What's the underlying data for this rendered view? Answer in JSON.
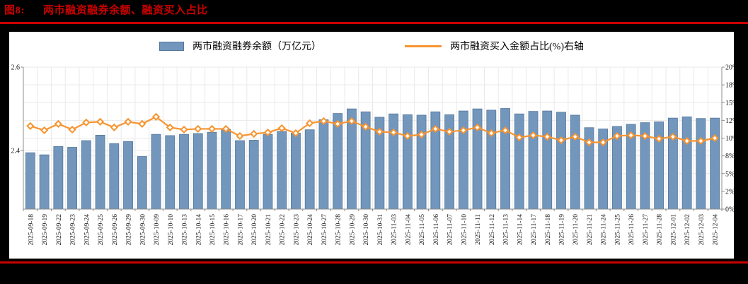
{
  "title": {
    "prefix": "图8:",
    "text": "两市融资融券余额、融资买入占比"
  },
  "legend": [
    {
      "label": "两市融资融券余额（万亿元）",
      "color": "#7396bc"
    },
    {
      "label": "两市融资买入金额占比(%)右轴",
      "color": "#f79430"
    }
  ],
  "colors": {
    "title_red": "#cc0000",
    "rule_red": "#cc0000",
    "bar_fill": "#7396bc",
    "bar_stroke": "#54779b",
    "line_orange": "#f79430",
    "grid": "#e9e9e9",
    "axis": "#8c8c8c",
    "text": "#1a1a1a",
    "panel_bg": "#ffffff",
    "page_bg": "#000000"
  },
  "chart_data": {
    "type": "bar",
    "title": "两市融资融券余额、融资买入占比",
    "categories": [
      "2025-09-18",
      "2025-09-19",
      "2025-09-22",
      "2025-09-23",
      "2025-09-24",
      "2025-09-25",
      "2025-09-26",
      "2025-09-29",
      "2025-09-30",
      "2025-10-09",
      "2025-10-10",
      "2025-10-13",
      "2025-10-14",
      "2025-10-15",
      "2025-10-16",
      "2025-10-17",
      "2025-10-20",
      "2025-10-21",
      "2025-10-22",
      "2025-10-23",
      "2025-10-24",
      "2025-10-27",
      "2025-10-28",
      "2025-10-29",
      "2025-10-30",
      "2025-10-31",
      "2025-11-03",
      "2025-11-04",
      "2025-11-05",
      "2025-11-06",
      "2025-11-07",
      "2025-11-10",
      "2025-11-11",
      "2025-11-12",
      "2025-11-13",
      "2025-11-14",
      "2025-11-17",
      "2025-11-18",
      "2025-11-19",
      "2025-11-20",
      "2025-11-21",
      "2025-11-24",
      "2025-11-25",
      "2025-11-26",
      "2025-11-27",
      "2025-11-28",
      "2025-12-01",
      "2025-12-02",
      "2025-12-03",
      "2025-12-04"
    ],
    "series": [
      {
        "name": "两市融资融券余额（万亿元）",
        "type": "bar",
        "axis": "left",
        "values": [
          2.395,
          2.39,
          2.41,
          2.408,
          2.424,
          2.437,
          2.417,
          2.422,
          2.386,
          2.439,
          2.436,
          2.439,
          2.441,
          2.444,
          2.451,
          2.424,
          2.425,
          2.439,
          2.446,
          2.442,
          2.45,
          2.474,
          2.489,
          2.5,
          2.493,
          2.48,
          2.488,
          2.486,
          2.485,
          2.493,
          2.486,
          2.495,
          2.5,
          2.497,
          2.501,
          2.488,
          2.494,
          2.495,
          2.492,
          2.485,
          2.455,
          2.452,
          2.458,
          2.463,
          2.467,
          2.469,
          2.478,
          2.481,
          2.477,
          2.478
        ]
      },
      {
        "name": "两市融资买入金额占比(%)右轴",
        "type": "line",
        "axis": "right",
        "values": [
          11.7,
          11.1,
          12.0,
          11.2,
          12.2,
          12.3,
          11.5,
          12.3,
          12.0,
          13.0,
          11.5,
          11.2,
          11.3,
          11.3,
          11.3,
          10.3,
          10.6,
          10.8,
          11.4,
          10.7,
          12.1,
          12.4,
          12.0,
          12.4,
          11.6,
          10.9,
          10.8,
          10.3,
          10.5,
          11.3,
          10.9,
          11.1,
          11.5,
          10.7,
          11.1,
          10.1,
          10.4,
          10.2,
          9.7,
          10.2,
          9.4,
          9.4,
          10.3,
          10.4,
          10.3,
          9.9,
          10.2,
          9.6,
          9.6,
          10.0
        ]
      }
    ],
    "left_axis": {
      "min": 2.26,
      "max": 2.6,
      "tick_values": [
        2.4,
        2.6
      ],
      "tick_labels": [
        "2.4",
        "2.6"
      ]
    },
    "right_axis": {
      "min": 0,
      "max": 20,
      "tick_values": [
        0,
        2.5,
        5,
        7.5,
        10,
        12.5,
        15,
        17.5,
        20
      ],
      "tick_labels": [
        "0%",
        "2%",
        "5%",
        "8%",
        "10%",
        "12%",
        "15%",
        "18%",
        "20%"
      ]
    },
    "grid": true,
    "legend_position": "top"
  }
}
